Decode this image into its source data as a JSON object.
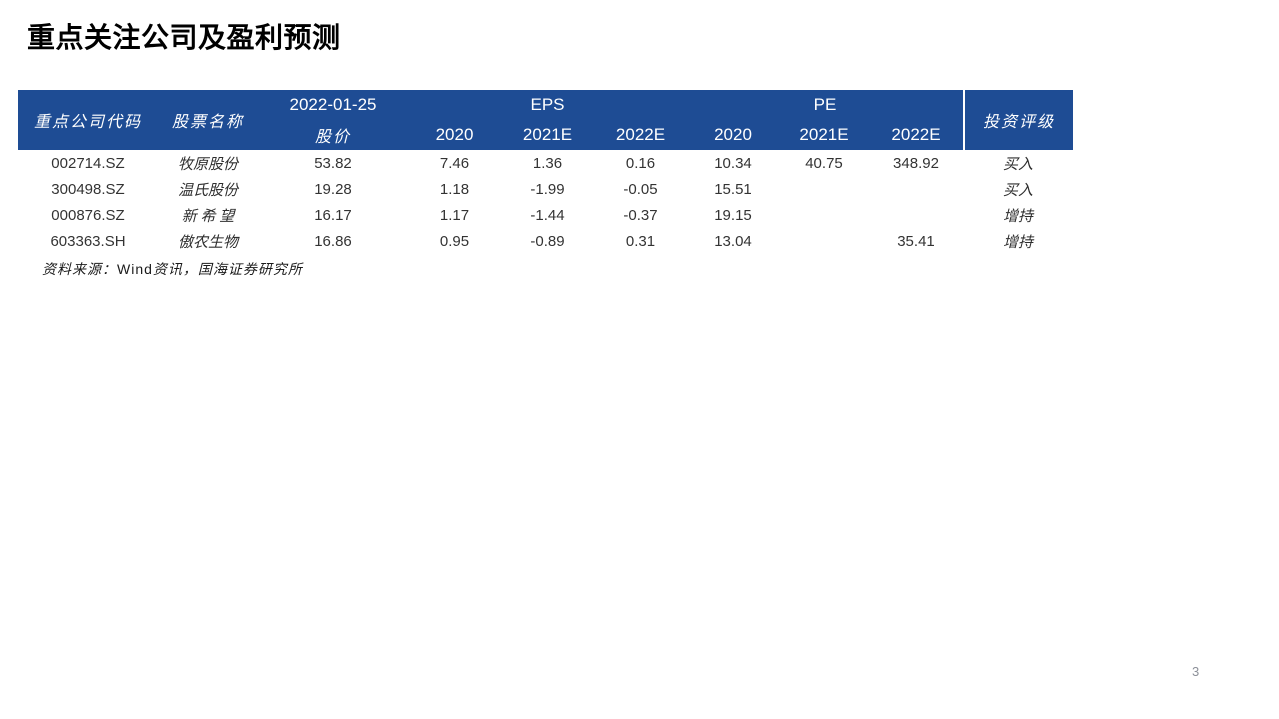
{
  "page": {
    "title": "重点关注公司及盈利预测",
    "page_number": "3"
  },
  "source_note": {
    "prefix": "资料来源：",
    "brand": "Wind",
    "suffix": "资讯，国海证券研究所"
  },
  "colors": {
    "header_bg": "#1E4C94",
    "header_text": "#FFFFFF",
    "header_divider": "#FFFFFF",
    "body_text": "#333333",
    "title_text": "#000000",
    "page_number_text": "#8C9099"
  },
  "table": {
    "header": {
      "col_code": "重点公司代码",
      "col_name": "股票名称",
      "date": "2022-01-25",
      "price_label": "股价",
      "eps_group": "EPS",
      "pe_group": "PE",
      "eps_years": [
        "2020",
        "2021E",
        "2022E"
      ],
      "pe_years": [
        "2020",
        "2021E",
        "2022E"
      ],
      "col_rating": "投资评级"
    },
    "rows": [
      {
        "code": "002714.SZ",
        "name": "牧原股份",
        "price": "53.82",
        "eps2020": "7.46",
        "eps2021e": "1.36",
        "eps2022e": "0.16",
        "pe2020": "10.34",
        "pe2021e": "40.75",
        "pe2022e": "348.92",
        "rating": "买入"
      },
      {
        "code": "300498.SZ",
        "name": "温氏股份",
        "price": "19.28",
        "eps2020": "1.18",
        "eps2021e": "-1.99",
        "eps2022e": "-0.05",
        "pe2020": "15.51",
        "pe2021e": "",
        "pe2022e": "",
        "rating": "买入"
      },
      {
        "code": "000876.SZ",
        "name": "新 希 望",
        "price": "16.17",
        "eps2020": "1.17",
        "eps2021e": "-1.44",
        "eps2022e": "-0.37",
        "pe2020": "19.15",
        "pe2021e": "",
        "pe2022e": "",
        "rating": "增持"
      },
      {
        "code": "603363.SH",
        "name": "傲农生物",
        "price": "16.86",
        "eps2020": "0.95",
        "eps2021e": "-0.89",
        "eps2022e": "0.31",
        "pe2020": "13.04",
        "pe2021e": "",
        "pe2022e": "35.41",
        "rating": "增持"
      }
    ]
  }
}
